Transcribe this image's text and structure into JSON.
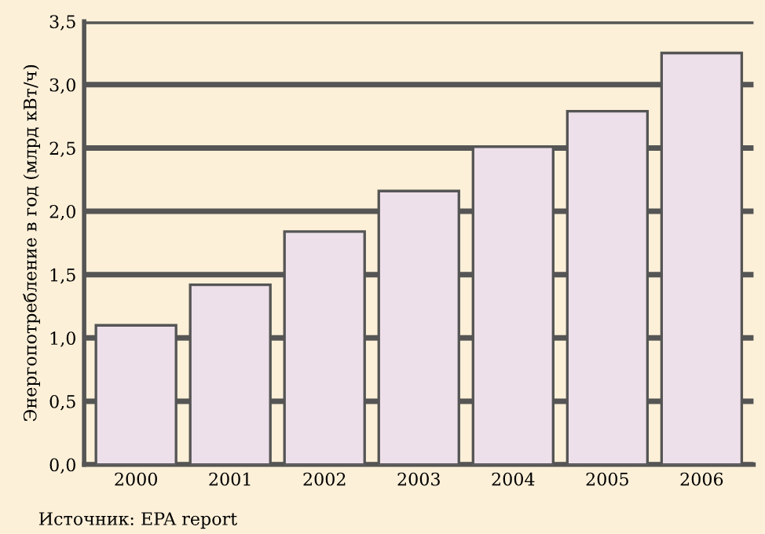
{
  "chart_data": {
    "type": "bar",
    "ylabel": "Энергопотребление в год (млрд кВт/ч)",
    "categories": [
      "2000",
      "2001",
      "2002",
      "2003",
      "2004",
      "2005",
      "2006"
    ],
    "values": [
      1.1,
      1.42,
      1.84,
      2.16,
      2.51,
      2.79,
      3.25
    ],
    "color": "#eee0ea",
    "ylim": [
      0,
      3.5
    ],
    "yticks": [
      {
        "value": 0,
        "label": "0,0"
      },
      {
        "value": 0.5,
        "label": "0,5"
      },
      {
        "value": 1,
        "label": "1,0"
      },
      {
        "value": 1.5,
        "label": "1,5"
      },
      {
        "value": 2,
        "label": "2,0"
      },
      {
        "value": 2.5,
        "label": "2,5"
      },
      {
        "value": 3,
        "label": "3,0"
      },
      {
        "value": 3.5,
        "label": "3,5"
      }
    ],
    "grid": "y",
    "annotations": [
      "Источник: EPA report"
    ]
  }
}
